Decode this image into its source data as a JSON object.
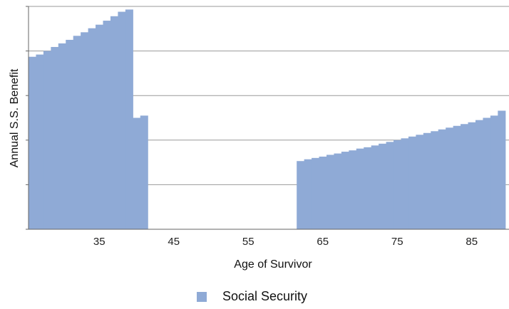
{
  "chart_data": {
    "type": "bar",
    "xlabel": "Age of Survivor",
    "ylabel": "Annual S.S. Benefit",
    "x_ticks": [
      35,
      45,
      55,
      65,
      75,
      85
    ],
    "xlim": [
      25.5,
      90
    ],
    "ylim": [
      0,
      5
    ],
    "grid": "horizontal",
    "legend_position": "bottom-center",
    "series": [
      {
        "name": "Social Security",
        "color": "#8FAAD6",
        "x": [
          26,
          27,
          28,
          29,
          30,
          31,
          32,
          33,
          34,
          35,
          36,
          37,
          38,
          39,
          40,
          41,
          42,
          43,
          44,
          45,
          46,
          47,
          48,
          49,
          50,
          51,
          52,
          53,
          54,
          55,
          56,
          57,
          58,
          59,
          60,
          61,
          62,
          63,
          64,
          65,
          66,
          67,
          68,
          69,
          70,
          71,
          72,
          73,
          74,
          75,
          76,
          77,
          78,
          79,
          80,
          81,
          82,
          83,
          84,
          85,
          86,
          87,
          88,
          89
        ],
        "values": [
          3.87,
          3.92,
          4.0,
          4.09,
          4.17,
          4.25,
          4.34,
          4.42,
          4.51,
          4.59,
          4.68,
          4.78,
          4.88,
          4.93,
          2.5,
          2.55,
          0,
          0,
          0,
          0,
          0,
          0,
          0,
          0,
          0,
          0,
          0,
          0,
          0,
          0,
          0,
          0,
          0,
          0,
          0,
          0,
          1.53,
          1.57,
          1.6,
          1.63,
          1.67,
          1.7,
          1.74,
          1.77,
          1.81,
          1.84,
          1.88,
          1.92,
          1.96,
          2.0,
          2.04,
          2.08,
          2.12,
          2.16,
          2.2,
          2.24,
          2.28,
          2.32,
          2.36,
          2.4,
          2.45,
          2.5,
          2.55,
          2.66
        ]
      }
    ]
  },
  "legend": {
    "label": "Social Security",
    "color": "#8FAAD6"
  }
}
